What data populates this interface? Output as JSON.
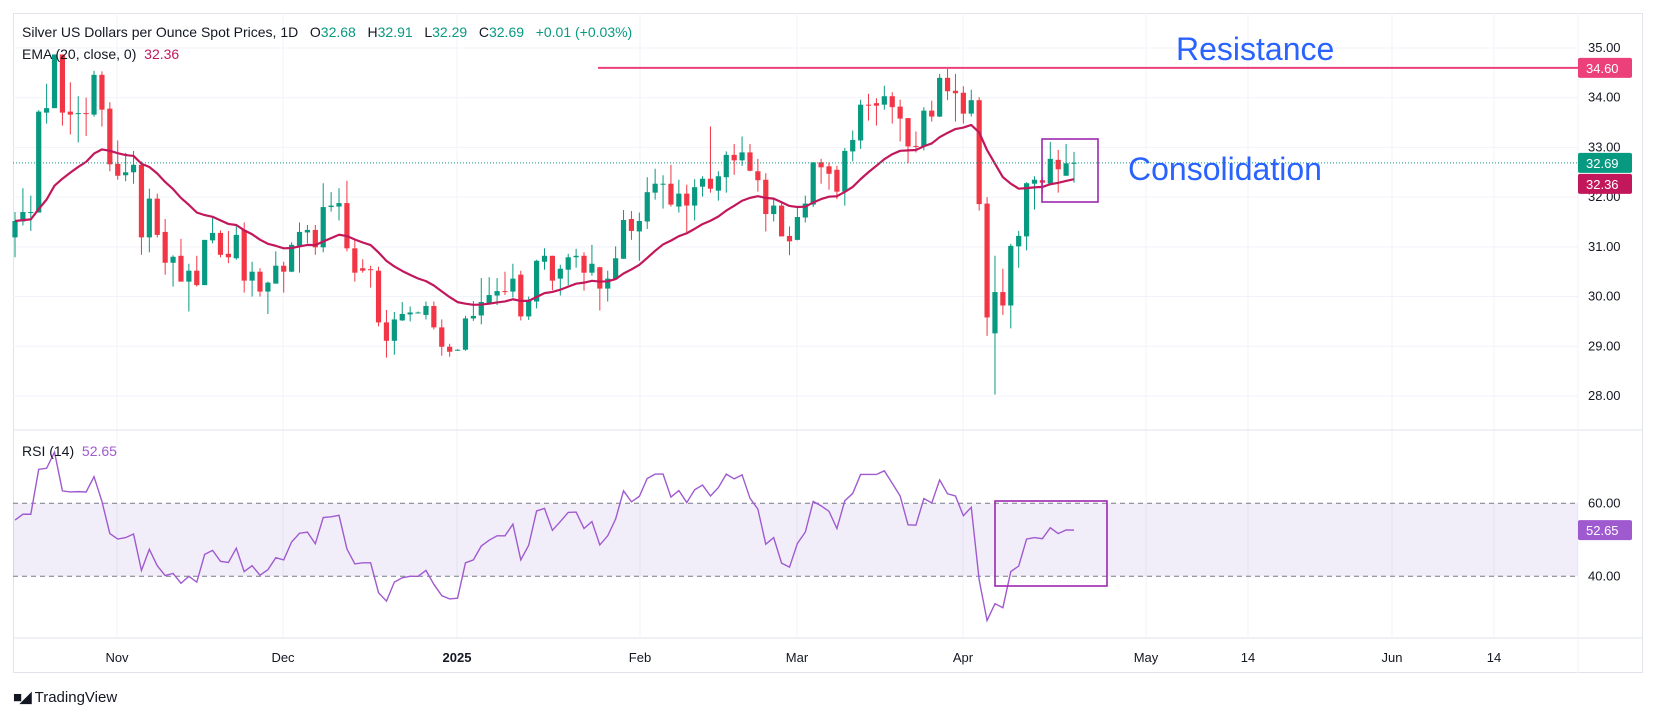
{
  "header": {
    "title": "Silver US Dollars per Ounce Spot Prices, 1D",
    "open_label": "O",
    "open": "32.68",
    "high_label": "H",
    "high": "32.91",
    "low_label": "L",
    "low": "32.29",
    "close_label": "C",
    "close": "32.69",
    "change": "+0.01 (+0.03%)"
  },
  "ema_legend": {
    "label": "EMA (20, close, 0)",
    "value": "32.36"
  },
  "rsi_legend": {
    "label": "RSI (14)",
    "value": "52.65"
  },
  "annotations": {
    "resistance": "Resistance",
    "consolidation": "Consolidation"
  },
  "price_axis": {
    "ticks": [
      "35.00",
      "34.00",
      "33.00",
      "32.00",
      "31.00",
      "30.00",
      "29.00",
      "28.00"
    ],
    "badges": {
      "resistance": "34.60",
      "last": "32.69",
      "ema": "32.36"
    }
  },
  "rsi_axis": {
    "ticks": [
      "60.00",
      "40.00"
    ],
    "badge": "52.65"
  },
  "time_axis": [
    "Nov",
    "Dec",
    "2025",
    "Feb",
    "Mar",
    "Apr",
    "May",
    "14",
    "Jun",
    "14"
  ],
  "branding": "TradingView",
  "colors": {
    "up": "#089981",
    "down": "#f23645",
    "ema": "#c2185b",
    "resistance_line": "#ec407a",
    "annotation_text": "#2962ff",
    "highlight_box": "#9c27b0",
    "rsi_line": "#a05ad0",
    "rsi_band": "#7e57c2"
  },
  "chart_data": {
    "type": "candlestick",
    "interval": "1D",
    "ylim": [
      27.3,
      35.7
    ],
    "grid": true,
    "resistance_level": 34.6,
    "ema_period": 20,
    "last_price": 32.69,
    "candle_fields": [
      "open",
      "high",
      "low",
      "close"
    ],
    "candles": [
      [
        31.19,
        31.7,
        30.79,
        31.52
      ],
      [
        31.51,
        32.18,
        31.43,
        31.7
      ],
      [
        31.68,
        32.03,
        31.32,
        31.7
      ],
      [
        31.69,
        33.75,
        31.69,
        33.72
      ],
      [
        33.7,
        34.28,
        33.48,
        33.79
      ],
      [
        33.79,
        34.87,
        33.79,
        34.87
      ],
      [
        34.87,
        34.87,
        33.44,
        33.7
      ],
      [
        33.72,
        34.31,
        33.26,
        33.66
      ],
      [
        33.67,
        34.03,
        33.1,
        33.69
      ],
      [
        33.69,
        34.0,
        33.23,
        33.68
      ],
      [
        33.66,
        34.54,
        33.62,
        34.46
      ],
      [
        34.46,
        34.53,
        33.42,
        33.76
      ],
      [
        33.78,
        33.91,
        32.52,
        32.66
      ],
      [
        32.67,
        33.14,
        32.35,
        32.43
      ],
      [
        32.44,
        32.89,
        32.32,
        32.5
      ],
      [
        32.5,
        32.93,
        32.27,
        32.65
      ],
      [
        32.65,
        32.72,
        30.84,
        31.19
      ],
      [
        31.19,
        32.17,
        30.89,
        31.97
      ],
      [
        31.97,
        32.07,
        31.19,
        31.24
      ],
      [
        31.3,
        31.56,
        30.44,
        30.68
      ],
      [
        30.68,
        30.83,
        30.2,
        30.8
      ],
      [
        30.82,
        31.16,
        30.3,
        30.3
      ],
      [
        30.3,
        30.66,
        29.7,
        30.52
      ],
      [
        30.52,
        30.82,
        30.2,
        30.23
      ],
      [
        30.23,
        31.14,
        30.23,
        31.14
      ],
      [
        31.13,
        31.58,
        31.07,
        31.28
      ],
      [
        31.28,
        31.33,
        30.79,
        30.84
      ],
      [
        30.86,
        31.32,
        30.67,
        30.79
      ],
      [
        30.77,
        31.42,
        30.74,
        31.24
      ],
      [
        31.34,
        31.49,
        30.08,
        30.32
      ],
      [
        30.32,
        30.7,
        30.0,
        30.5
      ],
      [
        30.5,
        30.57,
        30.0,
        30.1
      ],
      [
        30.1,
        30.3,
        29.65,
        30.28
      ],
      [
        30.26,
        30.91,
        30.26,
        30.62
      ],
      [
        30.62,
        30.7,
        30.08,
        30.5
      ],
      [
        30.5,
        31.09,
        30.49,
        31.04
      ],
      [
        31.02,
        31.49,
        30.48,
        31.3
      ],
      [
        31.29,
        31.44,
        31.07,
        31.34
      ],
      [
        31.34,
        31.44,
        30.84,
        30.99
      ],
      [
        30.99,
        32.28,
        30.89,
        31.8
      ],
      [
        31.8,
        32.1,
        31.71,
        31.83
      ],
      [
        31.81,
        32.18,
        31.53,
        31.88
      ],
      [
        31.88,
        32.33,
        30.91,
        30.97
      ],
      [
        30.97,
        31.13,
        30.3,
        30.48
      ],
      [
        30.57,
        30.75,
        30.48,
        30.52
      ],
      [
        30.55,
        30.62,
        30.18,
        30.54
      ],
      [
        30.52,
        30.6,
        29.4,
        29.48
      ],
      [
        29.48,
        29.73,
        28.77,
        29.11
      ],
      [
        29.11,
        29.69,
        28.83,
        29.54
      ],
      [
        29.52,
        29.89,
        29.51,
        29.65
      ],
      [
        29.64,
        29.8,
        29.5,
        29.68
      ],
      [
        29.68,
        29.7,
        29.66,
        29.68
      ],
      [
        29.63,
        29.9,
        29.54,
        29.81
      ],
      [
        29.81,
        29.9,
        29.34,
        29.38
      ],
      [
        29.38,
        29.54,
        28.81,
        28.99
      ],
      [
        28.99,
        29.05,
        28.79,
        28.89
      ],
      [
        28.93,
        28.94,
        28.91,
        28.93
      ],
      [
        28.93,
        29.61,
        28.91,
        29.56
      ],
      [
        29.56,
        29.91,
        29.51,
        29.61
      ],
      [
        29.62,
        30.37,
        29.44,
        29.89
      ],
      [
        29.87,
        30.39,
        29.85,
        30.03
      ],
      [
        30.02,
        30.37,
        29.83,
        30.11
      ],
      [
        30.11,
        30.5,
        30.03,
        30.1
      ],
      [
        30.1,
        30.66,
        29.98,
        30.36
      ],
      [
        30.44,
        30.52,
        29.52,
        29.6
      ],
      [
        29.6,
        30.0,
        29.53,
        29.92
      ],
      [
        29.9,
        30.74,
        29.76,
        30.72
      ],
      [
        30.7,
        30.97,
        30.54,
        30.82
      ],
      [
        30.82,
        30.82,
        30.13,
        30.32
      ],
      [
        30.36,
        30.64,
        30.02,
        30.56
      ],
      [
        30.54,
        30.86,
        30.23,
        30.79
      ],
      [
        30.79,
        30.96,
        30.58,
        30.82
      ],
      [
        30.82,
        30.89,
        30.12,
        30.48
      ],
      [
        30.48,
        31.04,
        30.42,
        30.66
      ],
      [
        30.59,
        30.6,
        29.72,
        30.16
      ],
      [
        30.16,
        30.52,
        29.9,
        30.36
      ],
      [
        30.35,
        31.01,
        30.35,
        30.77
      ],
      [
        30.76,
        31.74,
        30.76,
        31.54
      ],
      [
        31.56,
        31.72,
        31.14,
        31.32
      ],
      [
        31.31,
        31.69,
        30.72,
        31.52
      ],
      [
        31.51,
        32.4,
        31.36,
        32.1
      ],
      [
        32.09,
        32.57,
        31.95,
        32.27
      ],
      [
        32.26,
        32.44,
        31.77,
        32.27
      ],
      [
        32.27,
        32.65,
        31.81,
        31.85
      ],
      [
        31.81,
        32.35,
        31.69,
        32.07
      ],
      [
        32.07,
        32.25,
        31.3,
        31.83
      ],
      [
        31.83,
        32.36,
        31.53,
        32.2
      ],
      [
        32.21,
        32.42,
        32.01,
        32.37
      ],
      [
        32.37,
        33.42,
        32.09,
        32.17
      ],
      [
        32.13,
        32.52,
        31.93,
        32.42
      ],
      [
        32.4,
        32.92,
        32.09,
        32.85
      ],
      [
        32.85,
        33.07,
        32.45,
        32.74
      ],
      [
        32.74,
        33.22,
        32.63,
        32.9
      ],
      [
        32.9,
        33.07,
        32.52,
        32.53
      ],
      [
        32.52,
        32.77,
        32.11,
        32.34
      ],
      [
        32.35,
        32.48,
        31.31,
        31.66
      ],
      [
        31.66,
        31.97,
        31.51,
        31.83
      ],
      [
        31.83,
        31.91,
        31.21,
        31.21
      ],
      [
        31.22,
        31.41,
        30.83,
        31.11
      ],
      [
        31.14,
        31.81,
        31.13,
        31.6
      ],
      [
        31.59,
        32.03,
        31.49,
        31.87
      ],
      [
        31.85,
        32.7,
        31.8,
        32.7
      ],
      [
        32.7,
        32.77,
        32.27,
        32.6
      ],
      [
        32.62,
        32.7,
        32.15,
        32.47
      ],
      [
        32.55,
        32.63,
        31.96,
        32.11
      ],
      [
        32.11,
        32.99,
        31.83,
        32.93
      ],
      [
        32.92,
        33.34,
        32.72,
        33.15
      ],
      [
        33.14,
        33.96,
        32.97,
        33.86
      ],
      [
        33.86,
        34.08,
        33.54,
        33.84
      ],
      [
        33.89,
        33.99,
        33.44,
        33.84
      ],
      [
        33.86,
        34.24,
        33.76,
        34.03
      ],
      [
        34.03,
        34.11,
        33.48,
        33.81
      ],
      [
        33.82,
        33.96,
        33.12,
        33.58
      ],
      [
        33.59,
        33.59,
        32.68,
        33.02
      ],
      [
        33.03,
        33.32,
        32.9,
        33.02
      ],
      [
        33.02,
        33.81,
        32.94,
        33.74
      ],
      [
        33.74,
        33.94,
        33.52,
        33.62
      ],
      [
        33.62,
        34.48,
        33.61,
        34.4
      ],
      [
        34.4,
        34.58,
        33.95,
        34.13
      ],
      [
        34.14,
        34.48,
        33.52,
        34.09
      ],
      [
        34.1,
        34.23,
        33.48,
        33.68
      ],
      [
        33.68,
        34.16,
        33.62,
        33.95
      ],
      [
        33.95,
        34.01,
        31.73,
        31.86
      ],
      [
        31.87,
        32.0,
        29.21,
        29.58
      ],
      [
        29.26,
        30.82,
        28.03,
        30.09
      ],
      [
        30.09,
        30.56,
        29.63,
        29.82
      ],
      [
        29.82,
        31.06,
        29.36,
        31.02
      ],
      [
        31.01,
        31.32,
        30.58,
        31.22
      ],
      [
        31.21,
        32.3,
        30.93,
        32.28
      ],
      [
        32.27,
        32.42,
        31.75,
        32.35
      ],
      [
        32.34,
        32.4,
        32.07,
        32.29
      ],
      [
        32.27,
        33.11,
        32.27,
        32.77
      ],
      [
        32.75,
        32.95,
        32.09,
        32.56
      ],
      [
        32.43,
        33.07,
        32.43,
        32.68
      ],
      [
        32.68,
        32.91,
        32.29,
        32.69
      ]
    ],
    "rsi": {
      "period": 14,
      "upper_band": 60,
      "lower_band": 40,
      "values": [
        55.4,
        57.0,
        57.0,
        69.3,
        69.6,
        74.0,
        63.4,
        63.1,
        63.2,
        63.1,
        67.3,
        60.5,
        51.7,
        50.2,
        50.6,
        51.6,
        41.6,
        47.4,
        42.9,
        40.2,
        40.8,
        38.1,
        40.0,
        38.4,
        46.0,
        47.1,
        44.1,
        43.8,
        47.7,
        41.3,
        42.9,
        40.3,
        41.8,
        45.1,
        44.5,
        49.4,
        51.8,
        52.1,
        48.9,
        56.1,
        56.3,
        56.7,
        47.5,
        43.4,
        43.7,
        43.7,
        35.5,
        33.2,
        38.4,
        39.6,
        40.0,
        40.0,
        41.6,
        37.8,
        34.7,
        33.8,
        34.0,
        43.7,
        44.5,
        48.3,
        49.9,
        51.1,
        51.1,
        54.3,
        44.5,
        48.5,
        57.9,
        58.6,
        52.6,
        55.0,
        57.5,
        57.6,
        53.1,
        55.0,
        48.6,
        51.1,
        55.7,
        63.4,
        60.4,
        61.9,
        66.8,
        68.0,
        68.0,
        61.7,
        63.5,
        60.2,
        63.7,
        65.0,
        62.0,
        64.3,
        68.0,
        66.7,
        67.8,
        61.4,
        58.4,
        48.8,
        50.6,
        43.6,
        42.5,
        49.0,
        52.1,
        60.5,
        59.3,
        57.8,
        53.1,
        60.7,
        62.7,
        67.9,
        67.9,
        67.9,
        68.9,
        65.5,
        62.0,
        54.1,
        54.0,
        61.3,
        60.1,
        66.4,
        62.6,
        62.0,
        56.6,
        58.9,
        39.0,
        27.9,
        32.5,
        31.4,
        41.3,
        42.8,
        50.2,
        50.6,
        50.3,
        53.3,
        51.7,
        52.7,
        52.65
      ]
    }
  }
}
